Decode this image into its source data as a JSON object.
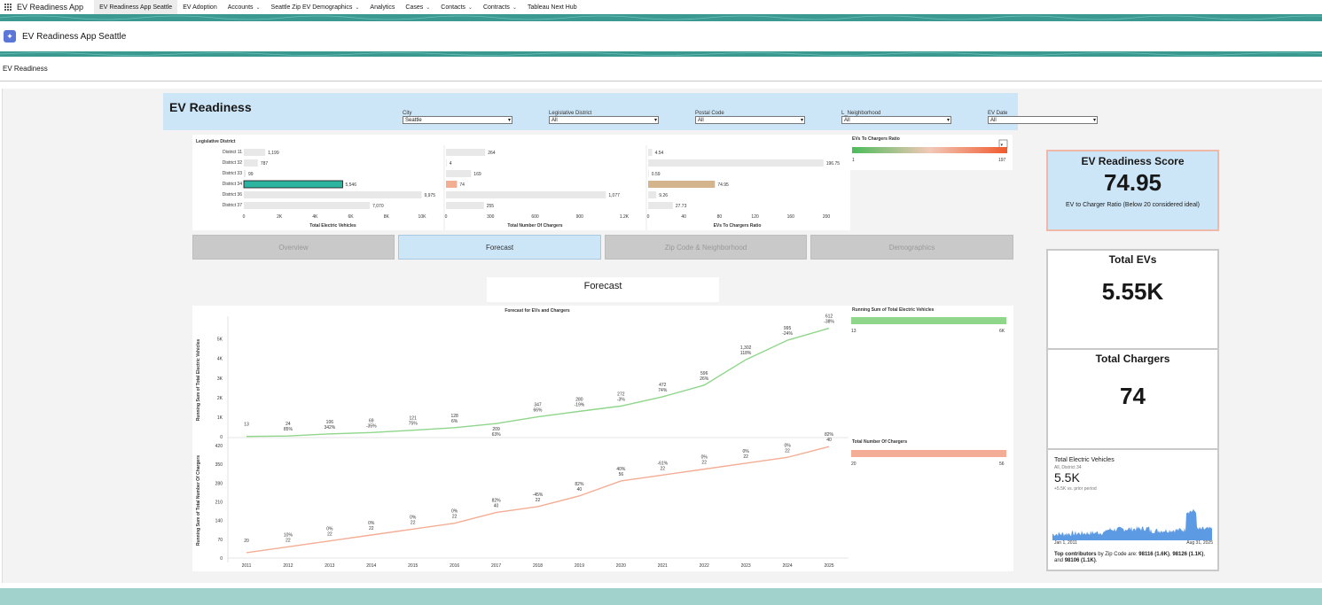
{
  "topnav": {
    "app_name": "EV Readiness App",
    "items": [
      {
        "label": "EV Readiness App Seattle",
        "active": true,
        "menu": false
      },
      {
        "label": "EV Adoption",
        "active": false,
        "menu": false
      },
      {
        "label": "Accounts",
        "active": false,
        "menu": true
      },
      {
        "label": "Seattle Zip EV Demographics",
        "active": false,
        "menu": true
      },
      {
        "label": "Analytics",
        "active": false,
        "menu": false
      },
      {
        "label": "Cases",
        "active": false,
        "menu": true
      },
      {
        "label": "Contacts",
        "active": false,
        "menu": true
      },
      {
        "label": "Contracts",
        "active": false,
        "menu": true
      },
      {
        "label": "Tableau Next Hub",
        "active": false,
        "menu": false
      }
    ]
  },
  "page_header": {
    "title": "EV Readiness App Seattle",
    "icon": "rocket-icon"
  },
  "tab": {
    "label": "EV Readiness"
  },
  "dashboard": {
    "title": "EV Readiness",
    "filters": [
      {
        "label": "City",
        "value": "Seattle"
      },
      {
        "label": "Legislative District",
        "value": "All"
      },
      {
        "label": "Postal Code",
        "value": "All"
      },
      {
        "label": "L_Neighborhood",
        "value": "All"
      },
      {
        "label": "EV Date",
        "value": "All"
      }
    ],
    "nav_buttons": [
      {
        "label": "Overview",
        "selected": false
      },
      {
        "label": "Forecast",
        "selected": true
      },
      {
        "label": "Zip Code & Neighborhood",
        "selected": false
      },
      {
        "label": "Demographics",
        "selected": false
      }
    ],
    "section_title": "Forecast"
  },
  "district_charts": {
    "heading": "Legislative District",
    "districts": [
      "District 11",
      "District 32",
      "District 33",
      "District 34",
      "District 36",
      "District 37"
    ],
    "highlight_index": 3,
    "ev": {
      "title": "Total Electric Vehicles",
      "values": [
        1199,
        787,
        99,
        5546,
        9975,
        7070
      ],
      "labels": [
        "1,199",
        "787",
        "99",
        "5,546",
        "9,975",
        "7,070"
      ],
      "max": 10000,
      "ticks": [
        "0",
        "2K",
        "4K",
        "6K",
        "8K",
        "10K"
      ],
      "tick_values": [
        0,
        2000,
        4000,
        6000,
        8000,
        10000
      ]
    },
    "chargers": {
      "title": "Total Number Of Chargers",
      "values": [
        264,
        4,
        169,
        74,
        1077,
        255
      ],
      "labels": [
        "264",
        "4",
        "169",
        "74",
        "1,077",
        "255"
      ],
      "max": 1200,
      "ticks": [
        "0",
        "300",
        "600",
        "900",
        "1.2K"
      ],
      "tick_values": [
        0,
        300,
        600,
        900,
        1200
      ]
    },
    "ratio": {
      "title": "EVs To Chargers Ratio",
      "values": [
        4.54,
        196.75,
        0.59,
        74.95,
        9.26,
        27.73
      ],
      "labels": [
        "4.54",
        "196.75",
        "0.59",
        "74.95",
        "9.26",
        "27.73"
      ],
      "max": 200,
      "ticks": [
        "0",
        "40",
        "80",
        "120",
        "160",
        "200"
      ],
      "tick_values": [
        0,
        40,
        80,
        120,
        160,
        200
      ]
    },
    "colors": {
      "bar": "#e8e8e8",
      "ev_highlight": "#2bb5a0",
      "chargers_highlight": "#f4ad95",
      "ratio_highlight": "#d4b48c"
    }
  },
  "ratio_legend": {
    "title": "EVs To Chargers Ratio",
    "min": "1",
    "max": "197"
  },
  "forecast_chart": {
    "title": "Forecast for EVs and Chargers",
    "years": [
      "2011",
      "2012",
      "2013",
      "2014",
      "2015",
      "2016",
      "2017",
      "2018",
      "2019",
      "2020",
      "2021",
      "2022",
      "2023",
      "2024",
      "2025"
    ],
    "ev": {
      "ylabel": "Running Sum of Total Electric Vehicles",
      "ticks": [
        "0",
        "1K",
        "2K",
        "3K",
        "4K",
        "5K"
      ],
      "tick_values": [
        0,
        1000,
        2000,
        3000,
        4000,
        5000
      ],
      "ymax": 5800,
      "running": [
        13,
        37,
        143,
        212,
        333,
        461,
        670,
        1017,
        1297,
        1569,
        2041,
        2637,
        3939,
        4934,
        5546
      ],
      "labels": [
        [
          "13",
          ""
        ],
        [
          "24",
          "85%"
        ],
        [
          "106",
          "342%"
        ],
        [
          "69",
          "-35%"
        ],
        [
          "121",
          "75%"
        ],
        [
          "128",
          "6%"
        ],
        [
          "209",
          "63%"
        ],
        [
          "347",
          "66%"
        ],
        [
          "280",
          "-19%"
        ],
        [
          "272",
          "-3%"
        ],
        [
          "472",
          "74%"
        ],
        [
          "596",
          "26%"
        ],
        [
          "1,302",
          "118%"
        ],
        [
          "995",
          "-24%"
        ],
        [
          "612",
          "-38%"
        ]
      ],
      "color": "#8fd68a"
    },
    "chargers": {
      "ylabel": "Running Sum of Total Number Of Chargers",
      "ticks": [
        "0",
        "70",
        "140",
        "210",
        "280",
        "350",
        "420"
      ],
      "tick_values": [
        0,
        70,
        140,
        210,
        280,
        350,
        420
      ],
      "ymax": 430,
      "running": [
        20,
        42,
        64,
        86,
        108,
        130,
        170,
        192,
        232,
        288,
        310,
        332,
        354,
        376,
        416
      ],
      "labels": [
        [
          "20",
          ""
        ],
        [
          "10%",
          "22"
        ],
        [
          "0%",
          "22"
        ],
        [
          "0%",
          "22"
        ],
        [
          "0%",
          "22"
        ],
        [
          "0%",
          "22"
        ],
        [
          "82%",
          "40"
        ],
        [
          "-45%",
          "22"
        ],
        [
          "82%",
          "40"
        ],
        [
          "40%",
          "56"
        ],
        [
          "-61%",
          "22"
        ],
        [
          "0%",
          "22"
        ],
        [
          "0%",
          "22"
        ],
        [
          "0%",
          "22"
        ],
        [
          "82%",
          "40"
        ]
      ],
      "color": "#f4ad95"
    }
  },
  "forecast_legends": {
    "ev": {
      "title": "Running Sum of Total Electric Vehicles",
      "min": "13",
      "max": "6K",
      "color": "#8fd68a"
    },
    "chargers": {
      "title": "Total Number Of Chargers",
      "min": "20",
      "max": "56",
      "color": "#f4ad95"
    }
  },
  "kpis": {
    "score": {
      "title": "EV Readiness Score",
      "value": "74.95",
      "note": "EV to Charger Ratio (Below 20 considered ideal)"
    },
    "evs": {
      "title": "Total EVs",
      "value": "5.55K"
    },
    "chargers": {
      "title": "Total Chargers",
      "value": "74"
    }
  },
  "spark_card": {
    "title": "Total Electric Vehicles",
    "subtitle": "All, District 34",
    "value": "5.5K",
    "delta": "+5.5K vs. prior period",
    "date_start": "Jan 1, 2011",
    "date_end": "Aug 31, 2025",
    "contrib_prefix": "Top contributors",
    "contrib_mid": " by Zip Code are: ",
    "contrib_1": "98116 (1.6K)",
    "contrib_2": "98126 (1.1K)",
    "contrib_and": ", and ",
    "contrib_3": "98106 (1.1K)",
    "color": "#4a8fe0"
  }
}
